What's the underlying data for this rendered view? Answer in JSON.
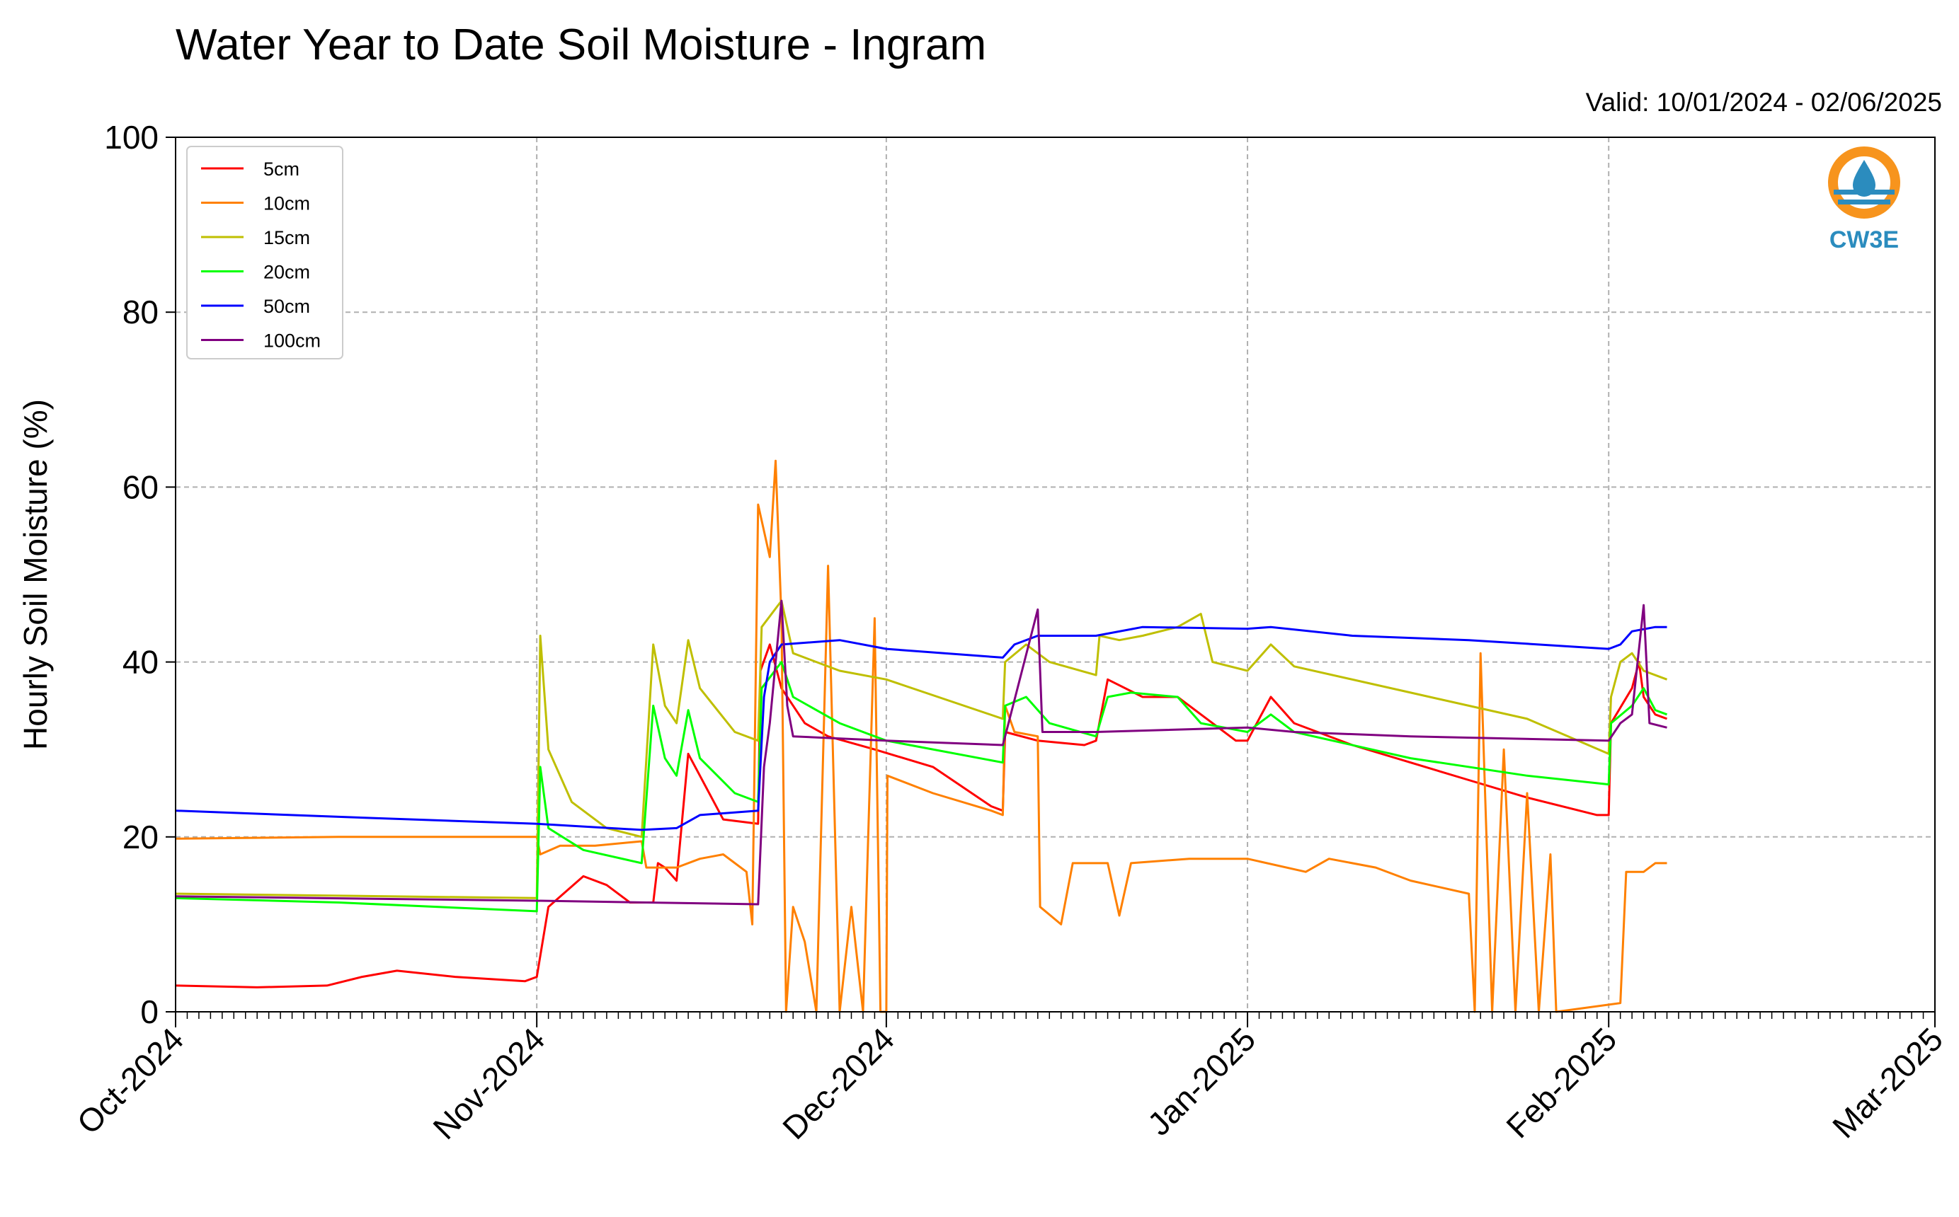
{
  "chart_data": {
    "type": "line",
    "title": "Water Year to Date Soil Moisture - Ingram",
    "subtitle": "Valid: 10/01/2024 - 02/06/2025",
    "xlabel": "",
    "ylabel": "Hourly Soil Moisture (%)",
    "xlim": [
      "2024-10-01",
      "2025-03-01"
    ],
    "ylim": [
      0,
      100
    ],
    "y_ticks": [
      0,
      20,
      40,
      60,
      80,
      100
    ],
    "x_ticks": [
      "2024-10-01",
      "2024-11-01",
      "2024-12-01",
      "2025-01-01",
      "2025-02-01",
      "2025-03-01"
    ],
    "x_tick_labels": [
      "Oct-2024",
      "Nov-2024",
      "Dec-2024",
      "Jan-2025",
      "Feb-2025",
      "Mar-2025"
    ],
    "grid": true,
    "legend_position": "top-left",
    "series": [
      {
        "name": "5cm",
        "color": "#ff0000",
        "points": [
          [
            "2024-10-01",
            3.0
          ],
          [
            "2024-10-08",
            2.8
          ],
          [
            "2024-10-14",
            3.0
          ],
          [
            "2024-10-17",
            4.0
          ],
          [
            "2024-10-20",
            4.7
          ],
          [
            "2024-10-25",
            4.0
          ],
          [
            "2024-10-31",
            3.5
          ],
          [
            "2024-11-01",
            4.0
          ],
          [
            "2024-11-02",
            12.0
          ],
          [
            "2024-11-05",
            15.5
          ],
          [
            "2024-11-07",
            14.5
          ],
          [
            "2024-11-09",
            12.5
          ],
          [
            "2024-11-11",
            12.5
          ],
          [
            "2024-11-11.4",
            17.0
          ],
          [
            "2024-11-12",
            16.5
          ],
          [
            "2024-11-13",
            15.0
          ],
          [
            "2024-11-14",
            29.5
          ],
          [
            "2024-11-15",
            27.0
          ],
          [
            "2024-11-17",
            22.0
          ],
          [
            "2024-11-20",
            21.5
          ],
          [
            "2024-11-20.2",
            39.0
          ],
          [
            "2024-11-21",
            42.0
          ],
          [
            "2024-11-22",
            37.0
          ],
          [
            "2024-11-24",
            33.0
          ],
          [
            "2024-11-26",
            31.5
          ],
          [
            "2024-11-30",
            30.0
          ],
          [
            "2024-12-05",
            28.0
          ],
          [
            "2024-12-10",
            23.5
          ],
          [
            "2024-12-11",
            23.0
          ],
          [
            "2024-12-11.2",
            32.0
          ],
          [
            "2024-12-14",
            31.0
          ],
          [
            "2024-12-18",
            30.5
          ],
          [
            "2024-12-19",
            31.0
          ],
          [
            "2024-12-20",
            38.0
          ],
          [
            "2024-12-23",
            36.0
          ],
          [
            "2024-12-26",
            36.0
          ],
          [
            "2024-12-31",
            31.0
          ],
          [
            "2025-01-01",
            31.0
          ],
          [
            "2025-01-03",
            36.0
          ],
          [
            "2025-01-05",
            33.0
          ],
          [
            "2025-01-10",
            30.5
          ],
          [
            "2025-01-15",
            28.5
          ],
          [
            "2025-01-20",
            26.5
          ],
          [
            "2025-01-25",
            24.5
          ],
          [
            "2025-01-31",
            22.5
          ],
          [
            "2025-02-01",
            22.5
          ],
          [
            "2025-02-01.2",
            33.0
          ],
          [
            "2025-02-03",
            37.0
          ],
          [
            "2025-02-03.6",
            40.0
          ],
          [
            "2025-02-04",
            36.0
          ],
          [
            "2025-02-05",
            34.0
          ],
          [
            "2025-02-06",
            33.5
          ]
        ]
      },
      {
        "name": "10cm",
        "color": "#ff8000",
        "points": [
          [
            "2024-10-01",
            19.8
          ],
          [
            "2024-10-15",
            20.0
          ],
          [
            "2024-11-01",
            20.0
          ],
          [
            "2024-11-01.3",
            18.0
          ],
          [
            "2024-11-03",
            19.0
          ],
          [
            "2024-11-06",
            19.0
          ],
          [
            "2024-11-10",
            19.5
          ],
          [
            "2024-11-10.4",
            16.5
          ],
          [
            "2024-11-13",
            16.5
          ],
          [
            "2024-11-15",
            17.5
          ],
          [
            "2024-11-17",
            18.0
          ],
          [
            "2024-11-19",
            16.0
          ],
          [
            "2024-11-19.5",
            10.0
          ],
          [
            "2024-11-20",
            58.0
          ],
          [
            "2024-11-21",
            52.0
          ],
          [
            "2024-11-21.5",
            63.0
          ],
          [
            "2024-11-22",
            45.0
          ],
          [
            "2024-11-22.4",
            0.0
          ],
          [
            "2024-11-23",
            12.0
          ],
          [
            "2024-11-24",
            8.0
          ],
          [
            "2024-11-25",
            0.0
          ],
          [
            "2024-11-26",
            51.0
          ],
          [
            "2024-11-27",
            0.0
          ],
          [
            "2024-11-28",
            12.0
          ],
          [
            "2024-11-29",
            0.0
          ],
          [
            "2024-11-30",
            45.0
          ],
          [
            "2024-11-30.5",
            0.0
          ],
          [
            "2024-12-01",
            0.0
          ],
          [
            "2024-12-01.1",
            27.0
          ],
          [
            "2024-12-05",
            25.0
          ],
          [
            "2024-12-10",
            23.0
          ],
          [
            "2024-12-11",
            22.5
          ],
          [
            "2024-12-11.2",
            35.0
          ],
          [
            "2024-12-12",
            32.0
          ],
          [
            "2024-12-14",
            31.5
          ],
          [
            "2024-12-14.2",
            12.0
          ],
          [
            "2024-12-16",
            10.0
          ],
          [
            "2024-12-17",
            17.0
          ],
          [
            "2024-12-20",
            17.0
          ],
          [
            "2024-12-21",
            11.0
          ],
          [
            "2024-12-22",
            17.0
          ],
          [
            "2024-12-27",
            17.5
          ],
          [
            "2025-01-01",
            17.5
          ],
          [
            "2025-01-06",
            16.0
          ],
          [
            "2025-01-08",
            17.5
          ],
          [
            "2025-01-12",
            16.5
          ],
          [
            "2025-01-15",
            15.0
          ],
          [
            "2025-01-20",
            13.5
          ],
          [
            "2025-01-20.5",
            0.0
          ],
          [
            "2025-01-21",
            41.0
          ],
          [
            "2025-01-22",
            0.0
          ],
          [
            "2025-01-23",
            30.0
          ],
          [
            "2025-01-24",
            0.0
          ],
          [
            "2025-01-25",
            25.0
          ],
          [
            "2025-01-26",
            0.0
          ],
          [
            "2025-01-27",
            18.0
          ],
          [
            "2025-01-27.5",
            0.0
          ],
          [
            "2025-02-02",
            1.0
          ],
          [
            "2025-02-02.5",
            16.0
          ],
          [
            "2025-02-04",
            16.0
          ],
          [
            "2025-02-05",
            17.0
          ],
          [
            "2025-02-06",
            17.0
          ]
        ]
      },
      {
        "name": "15cm",
        "color": "#bfbf00",
        "points": [
          [
            "2024-10-01",
            13.5
          ],
          [
            "2024-11-01",
            13.0
          ],
          [
            "2024-11-01.3",
            43.0
          ],
          [
            "2024-11-02",
            30.0
          ],
          [
            "2024-11-04",
            24.0
          ],
          [
            "2024-11-07",
            21.0
          ],
          [
            "2024-11-10",
            20.0
          ],
          [
            "2024-11-11",
            42.0
          ],
          [
            "2024-11-12",
            35.0
          ],
          [
            "2024-11-13",
            33.0
          ],
          [
            "2024-11-14",
            42.5
          ],
          [
            "2024-11-15",
            37.0
          ],
          [
            "2024-11-18",
            32.0
          ],
          [
            "2024-11-20",
            31.0
          ],
          [
            "2024-11-20.3",
            44.0
          ],
          [
            "2024-11-22",
            47.0
          ],
          [
            "2024-11-23",
            41.0
          ],
          [
            "2024-11-27",
            39.0
          ],
          [
            "2024-12-01",
            38.0
          ],
          [
            "2024-12-11",
            33.5
          ],
          [
            "2024-12-11.2",
            40.0
          ],
          [
            "2024-12-13",
            42.0
          ],
          [
            "2024-12-15",
            40.0
          ],
          [
            "2024-12-19",
            38.5
          ],
          [
            "2024-12-19.3",
            43.0
          ],
          [
            "2024-12-21",
            42.5
          ],
          [
            "2024-12-23",
            43.0
          ],
          [
            "2024-12-26",
            44.0
          ],
          [
            "2024-12-28",
            45.5
          ],
          [
            "2024-12-29",
            40.0
          ],
          [
            "2025-01-01",
            39.0
          ],
          [
            "2025-01-03",
            42.0
          ],
          [
            "2025-01-05",
            39.5
          ],
          [
            "2025-01-15",
            36.5
          ],
          [
            "2025-01-25",
            33.5
          ],
          [
            "2025-02-01",
            29.5
          ],
          [
            "2025-02-01.2",
            36.0
          ],
          [
            "2025-02-02",
            40.0
          ],
          [
            "2025-02-03",
            41.0
          ],
          [
            "2025-02-04",
            39.0
          ],
          [
            "2025-02-06",
            38.0
          ]
        ]
      },
      {
        "name": "20cm",
        "color": "#00ff00",
        "points": [
          [
            "2024-10-01",
            13.0
          ],
          [
            "2024-10-15",
            12.5
          ],
          [
            "2024-11-01",
            11.5
          ],
          [
            "2024-11-01.3",
            28.0
          ],
          [
            "2024-11-02",
            21.0
          ],
          [
            "2024-11-05",
            18.5
          ],
          [
            "2024-11-10",
            17.0
          ],
          [
            "2024-11-11",
            35.0
          ],
          [
            "2024-11-12",
            29.0
          ],
          [
            "2024-11-13",
            27.0
          ],
          [
            "2024-11-14",
            34.5
          ],
          [
            "2024-11-15",
            29.0
          ],
          [
            "2024-11-18",
            25.0
          ],
          [
            "2024-11-20",
            24.0
          ],
          [
            "2024-11-20.3",
            37.0
          ],
          [
            "2024-11-22",
            40.0
          ],
          [
            "2024-11-23",
            36.0
          ],
          [
            "2024-11-27",
            33.0
          ],
          [
            "2024-12-01",
            31.0
          ],
          [
            "2024-12-11",
            28.5
          ],
          [
            "2024-12-11.2",
            35.0
          ],
          [
            "2024-12-13",
            36.0
          ],
          [
            "2024-12-15",
            33.0
          ],
          [
            "2024-12-19",
            31.5
          ],
          [
            "2024-12-20",
            36.0
          ],
          [
            "2024-12-22",
            36.5
          ],
          [
            "2024-12-26",
            36.0
          ],
          [
            "2024-12-28",
            33.0
          ],
          [
            "2025-01-01",
            32.0
          ],
          [
            "2025-01-03",
            34.0
          ],
          [
            "2025-01-05",
            32.0
          ],
          [
            "2025-01-15",
            29.0
          ],
          [
            "2025-01-25",
            27.0
          ],
          [
            "2025-02-01",
            26.0
          ],
          [
            "2025-02-01.2",
            33.0
          ],
          [
            "2025-02-03",
            35.0
          ],
          [
            "2025-02-04",
            37.0
          ],
          [
            "2025-02-05",
            34.5
          ],
          [
            "2025-02-06",
            34.0
          ]
        ]
      },
      {
        "name": "50cm",
        "color": "#0000ff",
        "points": [
          [
            "2024-10-01",
            23.0
          ],
          [
            "2024-10-15",
            22.3
          ],
          [
            "2024-11-01",
            21.5
          ],
          [
            "2024-11-10",
            20.8
          ],
          [
            "2024-11-13",
            21.0
          ],
          [
            "2024-11-15",
            22.5
          ],
          [
            "2024-11-20",
            23.0
          ],
          [
            "2024-11-20.5",
            36.0
          ],
          [
            "2024-11-21",
            40.0
          ],
          [
            "2024-11-22",
            42.0
          ],
          [
            "2024-11-27",
            42.5
          ],
          [
            "2024-12-01",
            41.5
          ],
          [
            "2024-12-11",
            40.5
          ],
          [
            "2024-12-12",
            42.0
          ],
          [
            "2024-12-14",
            43.0
          ],
          [
            "2024-12-19",
            43.0
          ],
          [
            "2024-12-23",
            44.0
          ],
          [
            "2025-01-01",
            43.8
          ],
          [
            "2025-01-03",
            44.0
          ],
          [
            "2025-01-10",
            43.0
          ],
          [
            "2025-01-20",
            42.5
          ],
          [
            "2025-02-01",
            41.5
          ],
          [
            "2025-02-02",
            42.0
          ],
          [
            "2025-02-03",
            43.5
          ],
          [
            "2025-02-05",
            44.0
          ],
          [
            "2025-02-06",
            44.0
          ]
        ]
      },
      {
        "name": "100cm",
        "color": "#800080",
        "points": [
          [
            "2024-10-01",
            13.2
          ],
          [
            "2024-11-01",
            12.7
          ],
          [
            "2024-11-20",
            12.3
          ],
          [
            "2024-11-20.5",
            28.0
          ],
          [
            "2024-11-21",
            33.0
          ],
          [
            "2024-11-22",
            47.0
          ],
          [
            "2024-11-22.5",
            35.0
          ],
          [
            "2024-11-23",
            31.5
          ],
          [
            "2024-12-01",
            31.0
          ],
          [
            "2024-12-11",
            30.5
          ],
          [
            "2024-12-11.2",
            31.5
          ],
          [
            "2024-12-14",
            46.0
          ],
          [
            "2024-12-14.4",
            32.0
          ],
          [
            "2024-12-19",
            32.0
          ],
          [
            "2025-01-01",
            32.5
          ],
          [
            "2025-01-05",
            32.0
          ],
          [
            "2025-01-15",
            31.5
          ],
          [
            "2025-02-01",
            31.0
          ],
          [
            "2025-02-02",
            33.0
          ],
          [
            "2025-02-03",
            34.0
          ],
          [
            "2025-02-04",
            46.5
          ],
          [
            "2025-02-04.5",
            33.0
          ],
          [
            "2025-02-06",
            32.5
          ]
        ]
      }
    ]
  },
  "logo": {
    "text": "CW3E",
    "colors": {
      "ring": "#f7941d",
      "water": "#2b8cbe"
    }
  }
}
